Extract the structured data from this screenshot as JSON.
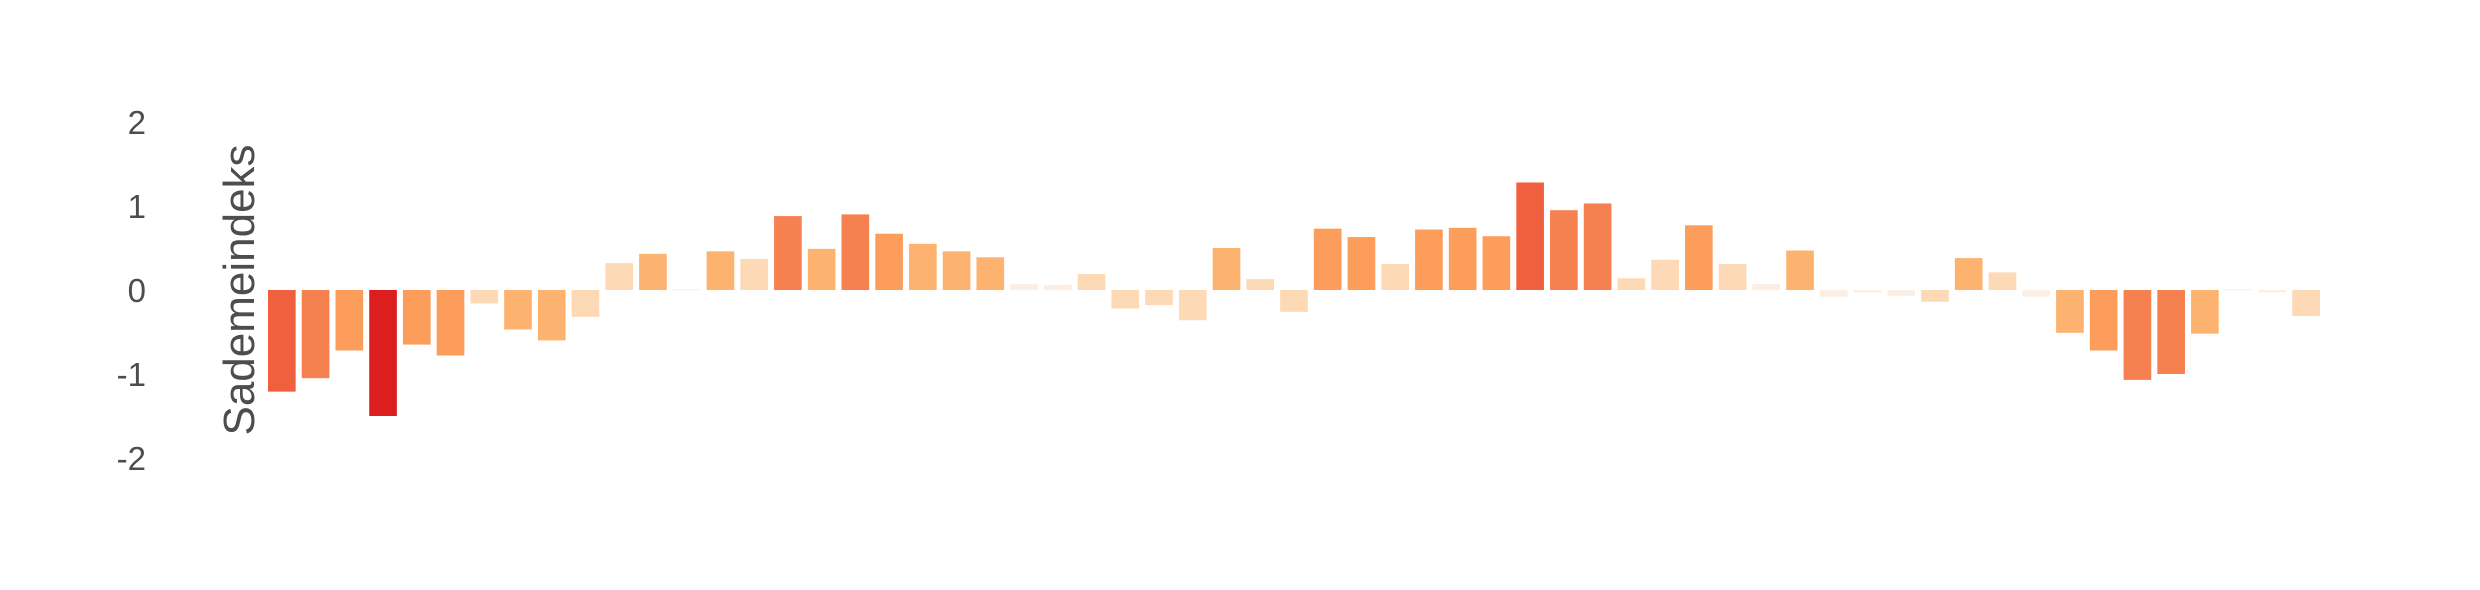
{
  "chart_data": {
    "type": "bar",
    "ylabel": "Sademeindeks",
    "xlabel": "",
    "ylim": [
      -2,
      2
    ],
    "yticks": [
      "2",
      "1",
      "0",
      "-1",
      "-2"
    ],
    "grid": false,
    "legend": "none",
    "color_scale": {
      "type": "diverging-magnitude",
      "stops": [
        "#fbeee4",
        "#fdd9b6",
        "#fdb36f",
        "#fc9d5c",
        "#f58150",
        "#f0603f",
        "#dc1e1e"
      ]
    },
    "values": [
      -1.21,
      -1.05,
      -0.72,
      -1.5,
      -0.65,
      -0.78,
      -0.16,
      -0.47,
      -0.6,
      -0.32,
      0.32,
      0.43,
      0.01,
      0.46,
      0.37,
      0.88,
      0.49,
      0.9,
      0.67,
      0.55,
      0.46,
      0.39,
      0.07,
      0.06,
      0.19,
      -0.22,
      -0.18,
      -0.36,
      0.5,
      0.13,
      -0.26,
      0.73,
      0.63,
      0.31,
      0.72,
      0.74,
      0.64,
      1.28,
      0.95,
      1.03,
      0.14,
      0.36,
      0.77,
      0.31,
      0.07,
      0.47,
      -0.08,
      -0.03,
      -0.07,
      -0.14,
      0.38,
      0.21,
      -0.08,
      -0.51,
      -0.72,
      -1.07,
      -1.0,
      -0.52,
      0.01,
      -0.03,
      -0.31
    ]
  }
}
